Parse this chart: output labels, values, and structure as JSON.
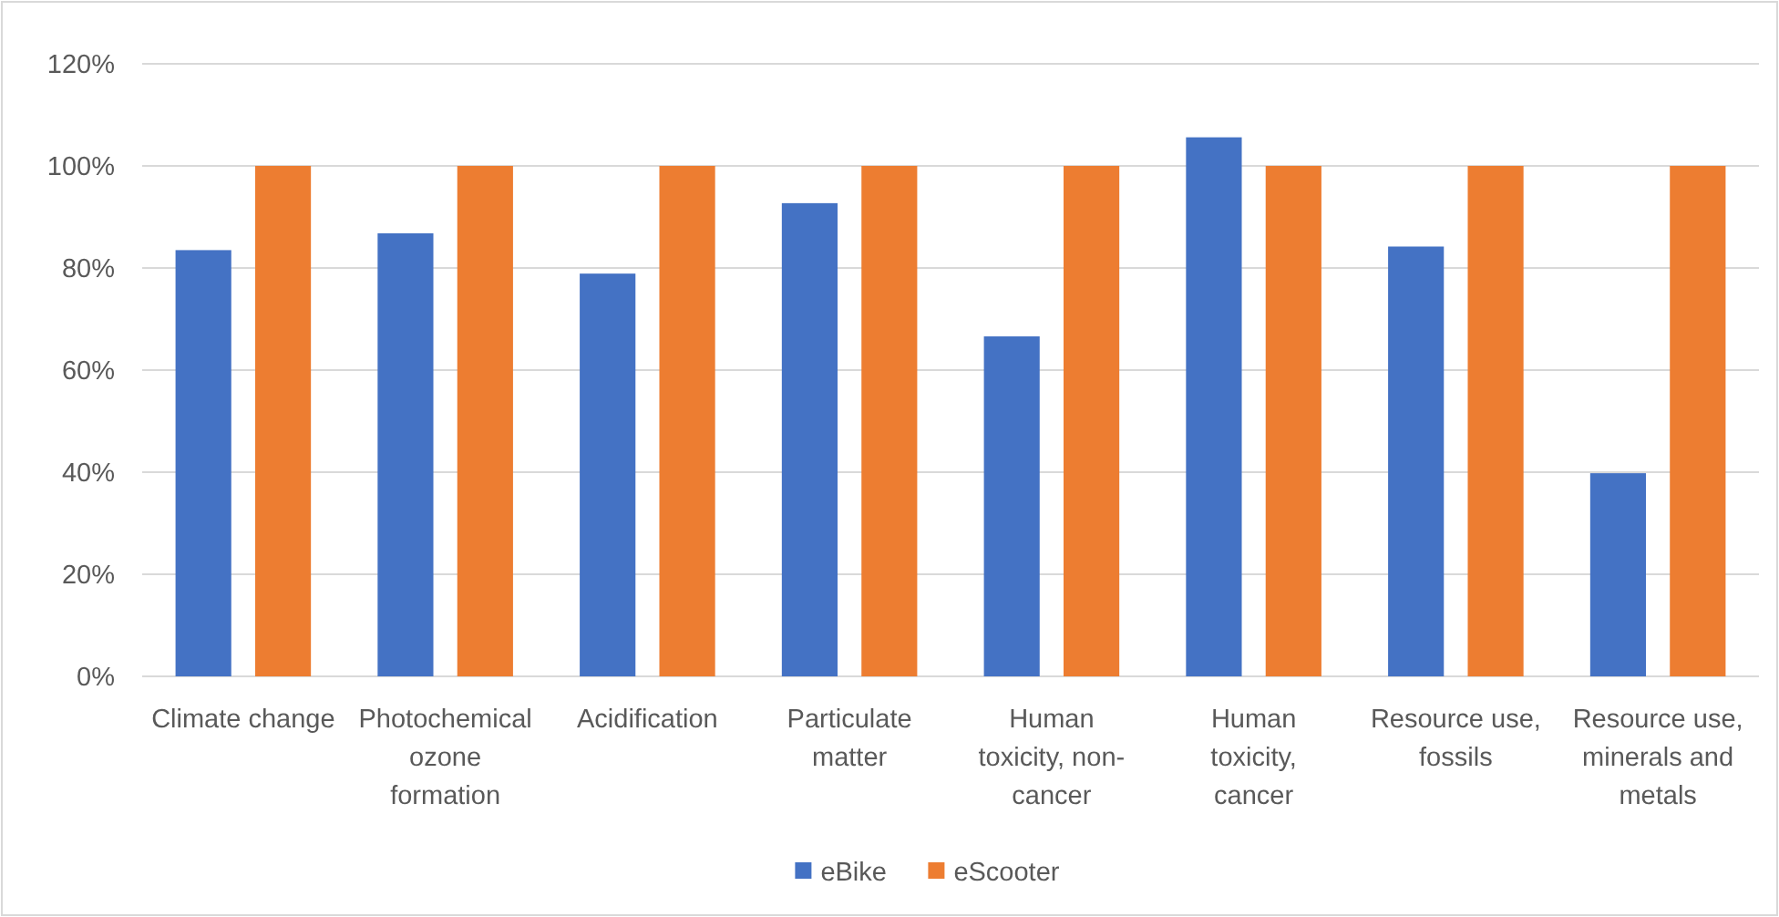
{
  "chart_data": {
    "type": "bar",
    "categories": [
      "Climate change",
      "Photochemical ozone formation",
      "Acidification",
      "Particulate matter",
      "Human toxicity, non-cancer",
      "Human toxicity, cancer",
      "Resource use, fossils",
      "Resource use, minerals and metals"
    ],
    "series": [
      {
        "name": "eBike",
        "color": "#4472c4",
        "values": [
          83.5,
          86.8,
          78.9,
          92.7,
          66.6,
          105.6,
          84.2,
          39.8
        ]
      },
      {
        "name": "eScooter",
        "color": "#ed7d31",
        "values": [
          100,
          100,
          100,
          100,
          100,
          100,
          100,
          100
        ]
      }
    ],
    "ylim": [
      0,
      120
    ],
    "yticks": [
      {
        "value": 0,
        "label": "0%"
      },
      {
        "value": 20,
        "label": "20%"
      },
      {
        "value": 40,
        "label": "40%"
      },
      {
        "value": 60,
        "label": "60%"
      },
      {
        "value": 80,
        "label": "80%"
      },
      {
        "value": 100,
        "label": "100%"
      },
      {
        "value": 120,
        "label": "120%"
      }
    ],
    "grid": true,
    "legend": "bottom"
  }
}
